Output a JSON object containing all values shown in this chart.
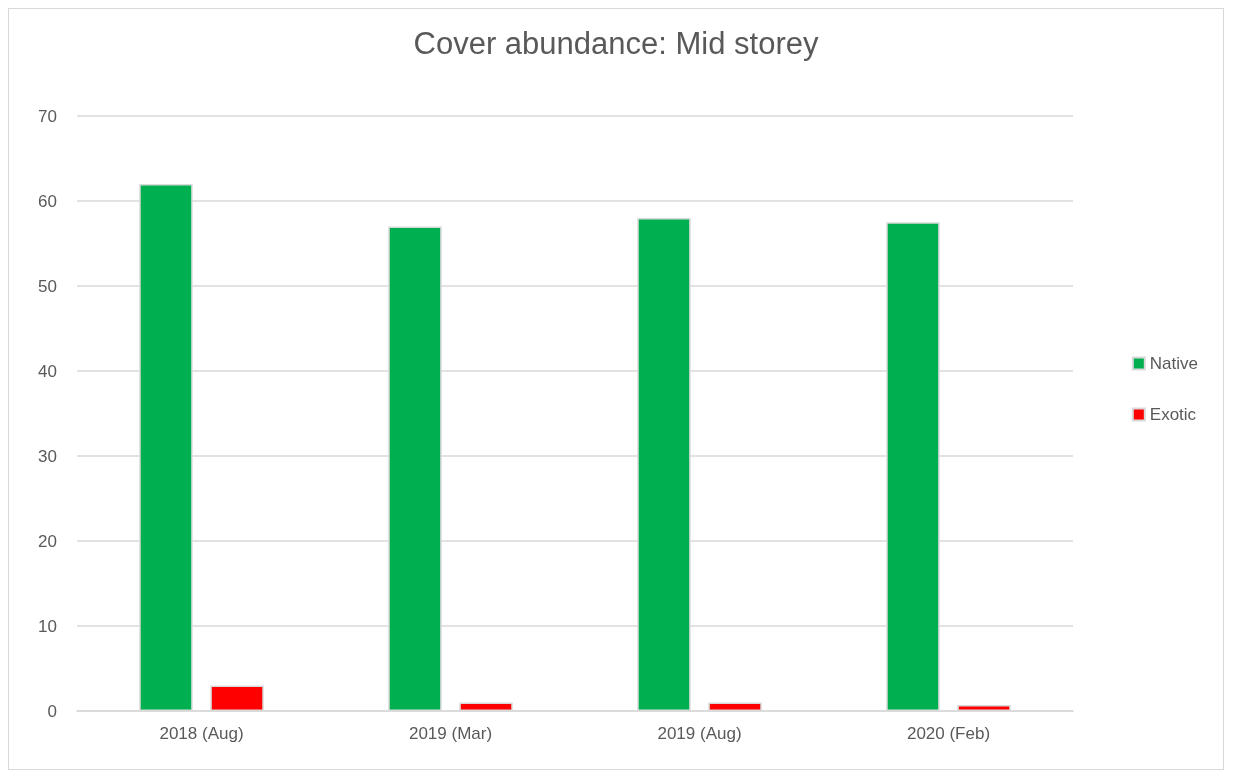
{
  "chart_data": {
    "type": "bar",
    "title": "Cover abundance: Mid storey",
    "categories": [
      "2018 (Aug)",
      "2019 (Mar)",
      "2019 (Aug)",
      "2020 (Feb)"
    ],
    "series": [
      {
        "name": "Native",
        "color": "#00b050",
        "values": [
          62,
          57,
          58,
          57.5
        ]
      },
      {
        "name": "Exotic",
        "color": "#ff0000",
        "values": [
          3,
          1,
          1,
          0.7
        ]
      }
    ],
    "ylim": [
      0,
      70
    ],
    "yticks": [
      0,
      10,
      20,
      30,
      40,
      50,
      60,
      70
    ],
    "grid": "y",
    "legend": "right"
  }
}
